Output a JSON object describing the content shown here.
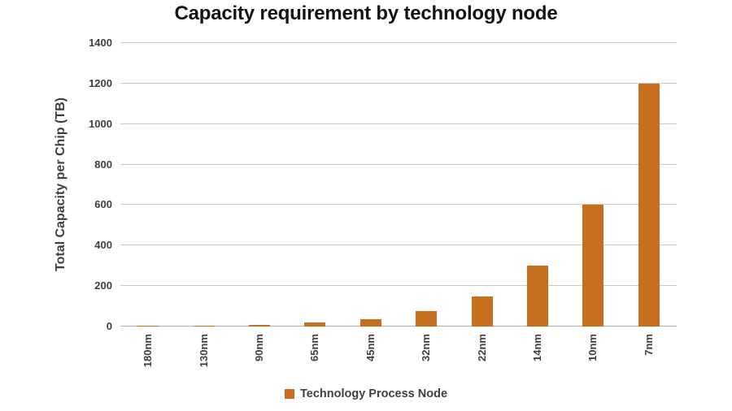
{
  "chart_data": {
    "type": "bar",
    "title": "Capacity requirement by technology node",
    "xlabel": "",
    "ylabel": "Total Capacity per Chip (TB)",
    "categories": [
      "180nm",
      "130nm",
      "90nm",
      "65nm",
      "45nm",
      "32nm",
      "22nm",
      "14nm",
      "10nm",
      "7nm"
    ],
    "values": [
      2.3,
      4.7,
      9.4,
      18.8,
      37.5,
      75,
      150,
      300,
      600,
      1200
    ],
    "legend": [
      "Technology Process Node"
    ],
    "legend_position": "bottom",
    "ylim": [
      0,
      1400
    ],
    "ytick_step": 200,
    "grid": true,
    "bar_color": "#C76F1F",
    "gridline_color": "#C9C9C9",
    "text_color": "#3F3F3F"
  }
}
